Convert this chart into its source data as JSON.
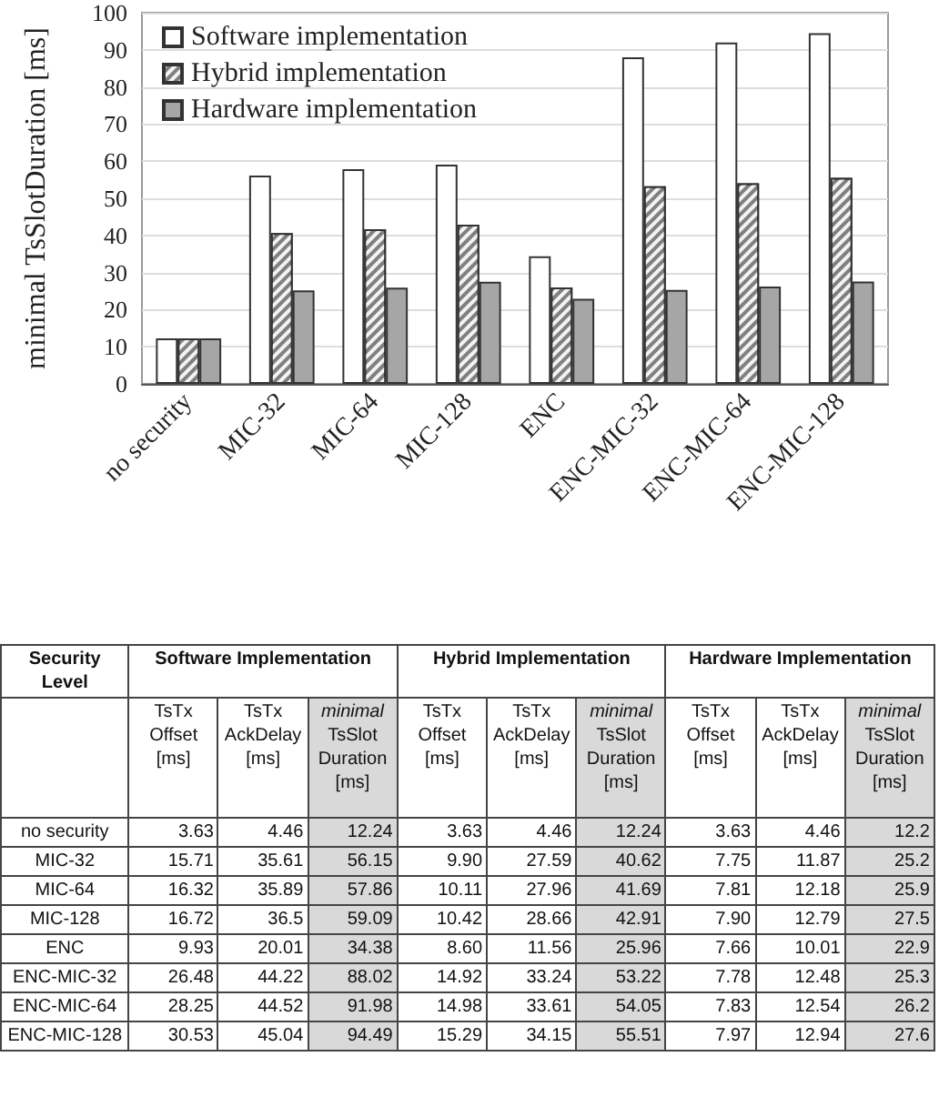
{
  "chart_data": [
    {
      "type": "bar",
      "ylabel": "minimal TsSlotDuration [ms]",
      "categories": [
        "no security",
        "MIC-32",
        "MIC-64",
        "MIC-128",
        "ENC",
        "ENC-MIC-32",
        "ENC-MIC-64",
        "ENC-MIC-128"
      ],
      "series": [
        {
          "name": "Software implementation",
          "color": "#ffffff",
          "values": [
            12.24,
            56.15,
            57.86,
            59.09,
            34.38,
            88.02,
            91.98,
            94.49
          ]
        },
        {
          "name": "Hybrid implementation",
          "color": "#808080",
          "values": [
            12.24,
            40.62,
            41.69,
            42.91,
            25.96,
            53.22,
            54.05,
            55.51
          ]
        },
        {
          "name": "Hardware implementation",
          "color": "#a6a6a6",
          "values": [
            12.24,
            25.2,
            25.9,
            27.5,
            22.9,
            25.3,
            26.2,
            27.6
          ]
        }
      ],
      "ylim": [
        0,
        100
      ],
      "yticks": [
        0,
        10,
        20,
        30,
        40,
        50,
        60,
        70,
        80,
        90,
        100
      ],
      "grid": "y",
      "legend": "top left"
    },
    {
      "type": "other",
      "annotations": [
        "Security Level",
        "Software Implementation",
        "Hybrid Implementation",
        "Hardware Implementation",
        "TsTx Offset [ms]",
        "TsTx AckDelay [ms]",
        "minimal TsSlot Duration [ms]",
        "TsTx Offset [ms]",
        "TsTx AckDelay [ms]",
        "minimal TsSlot Duration [ms]",
        "TsTx Offset [ms]",
        "TsTx AckDelay [ms]",
        "minimal TsSlot Duration [ms]",
        "no security",
        "3.63",
        "4.46",
        "12.24",
        "3.63",
        "4.46",
        "12.24",
        "3.63",
        "4.46",
        "12.2",
        "MIC-32",
        "15.71",
        "35.61",
        "56.15",
        "9.90",
        "27.59",
        "40.62",
        "7.75",
        "11.87",
        "25.2",
        "MIC-64",
        "16.32",
        "35.89",
        "57.86",
        "10.11",
        "27.96",
        "41.69",
        "7.81",
        "12.18",
        "25.9",
        "MIC-128",
        "16.72",
        "36.5",
        "59.09",
        "10.42",
        "28.66",
        "42.91",
        "7.90",
        "12.79",
        "27.5",
        "ENC",
        "9.93",
        "20.01",
        "34.38",
        "8.60",
        "11.56",
        "25.96",
        "7.66",
        "10.01",
        "22.9",
        "ENC-MIC-32",
        "26.48",
        "44.22",
        "88.02",
        "14.92",
        "33.24",
        "53.22",
        "7.78",
        "12.48",
        "25.3",
        "ENC-MIC-64",
        "28.25",
        "44.52",
        "91.98",
        "14.98",
        "33.61",
        "54.05",
        "7.83",
        "12.54",
        "26.2",
        "ENC-MIC-128",
        "30.53",
        "45.04",
        "94.49",
        "15.29",
        "34.15",
        "55.51",
        "7.97",
        "12.94",
        "27.6"
      ]
    }
  ]
}
